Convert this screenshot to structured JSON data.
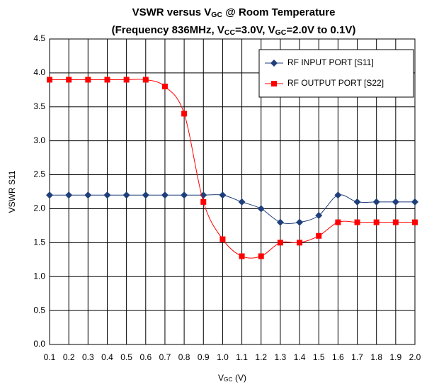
{
  "chart_data": {
    "type": "line",
    "title": [
      {
        "text": "VSWR versus V"
      },
      {
        "text": "GC",
        "sub": true
      },
      {
        "text": " @ Room Temperature"
      }
    ],
    "subtitle": [
      {
        "text": "(Frequency 836MHz, V"
      },
      {
        "text": "CC",
        "sub": true
      },
      {
        "text": "=3.0V, V"
      },
      {
        "text": "GC",
        "sub": true
      },
      {
        "text": "=2.0V to 0.1V)"
      }
    ],
    "xlabel": [
      {
        "text": "V"
      },
      {
        "text": "GC",
        "sub": true
      },
      {
        "text": " (V)"
      }
    ],
    "ylabel": "VSWR S11",
    "x": [
      0.1,
      0.2,
      0.3,
      0.4,
      0.5,
      0.6,
      0.7,
      0.8,
      0.9,
      1.0,
      1.1,
      1.2,
      1.3,
      1.4,
      1.5,
      1.6,
      1.7,
      1.8,
      1.9,
      2.0
    ],
    "series": [
      {
        "name": "RF INPUT PORT [S11]",
        "color": "#1f3f7a",
        "marker": "diamond",
        "values": [
          2.2,
          2.2,
          2.2,
          2.2,
          2.2,
          2.2,
          2.2,
          2.2,
          2.2,
          2.2,
          2.1,
          2.0,
          1.8,
          1.8,
          1.9,
          2.2,
          2.1,
          2.1,
          2.1,
          2.1
        ]
      },
      {
        "name": "RF OUTPUT PORT [S22]",
        "color": "#ff0000",
        "marker": "square",
        "values": [
          3.9,
          3.9,
          3.9,
          3.9,
          3.9,
          3.9,
          3.8,
          3.4,
          2.1,
          1.55,
          1.3,
          1.3,
          1.5,
          1.5,
          1.6,
          1.8,
          1.8,
          1.8,
          1.8,
          1.8
        ]
      }
    ],
    "xlim": [
      0.1,
      2.0
    ],
    "xticks": [
      0.1,
      0.2,
      0.3,
      0.4,
      0.5,
      0.6,
      0.7,
      0.8,
      0.9,
      {
        "value": 1,
        "label": "1.0"
      },
      1.1,
      1.2,
      1.3,
      1.4,
      1.5,
      1.6,
      1.7,
      1.8,
      1.9,
      {
        "value": 2,
        "label": "2.0"
      }
    ],
    "ylim": [
      0,
      4.5
    ],
    "yticks": [
      {
        "value": 0,
        "label": "0.0"
      },
      0.5,
      {
        "value": 1,
        "label": "1.0"
      },
      1.5,
      {
        "value": 2,
        "label": "2.0"
      },
      2.5,
      {
        "value": 3,
        "label": "3.0"
      },
      3.5,
      {
        "value": 4,
        "label": "4.0"
      },
      4.5
    ],
    "grid": true,
    "smooth": true,
    "legend": "upper right"
  }
}
